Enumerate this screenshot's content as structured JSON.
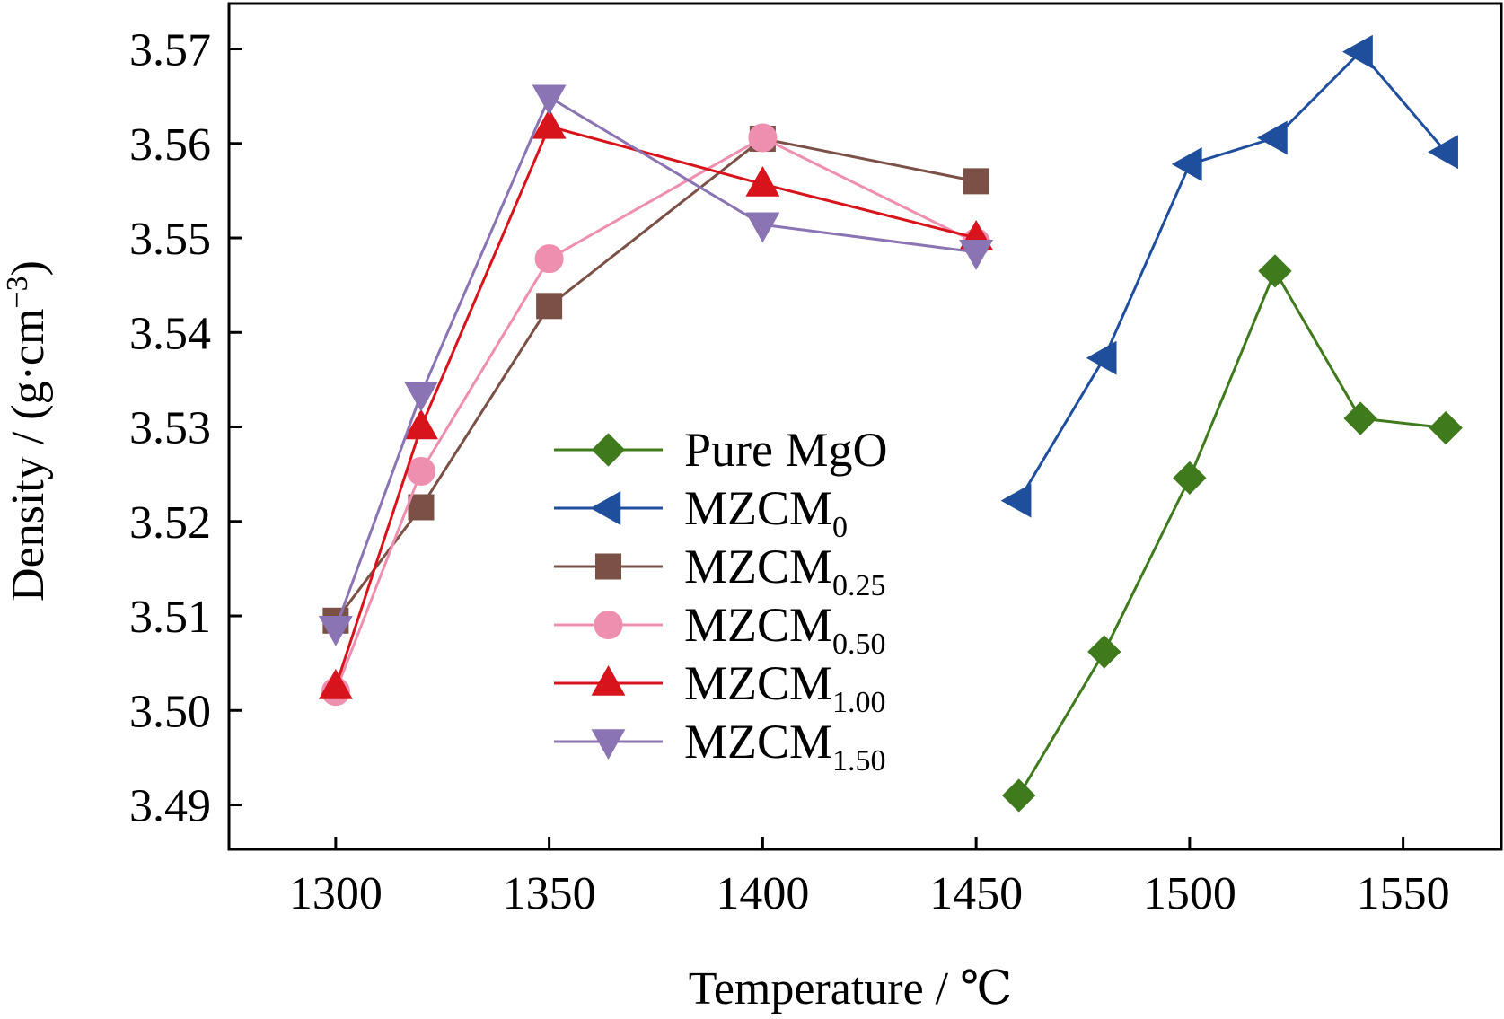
{
  "chart_data": {
    "type": "line",
    "xlabel": "Temperature / ℃",
    "ylabel": "Density / (g·cm",
    "ylabel_sup": "−3",
    "ylabel_end": ")",
    "xlim": [
      1275,
      1573
    ],
    "ylim": [
      3.4853,
      3.5748
    ],
    "xticks": [
      1300,
      1350,
      1400,
      1450,
      1500,
      1550
    ],
    "yticks": [
      3.49,
      3.5,
      3.51,
      3.52,
      3.53,
      3.54,
      3.55,
      3.56,
      3.57
    ],
    "ytick_labels": [
      "3.49",
      "3.50",
      "3.51",
      "3.52",
      "3.53",
      "3.54",
      "3.55",
      "3.56",
      "3.57"
    ],
    "grid": false,
    "legend_placement": "center",
    "series": [
      {
        "name": "Pure MgO",
        "base": "Pure MgO",
        "sub": "",
        "color": "#3f7a1d",
        "marker": "diamond",
        "x": [
          1460,
          1480,
          1500,
          1520,
          1540,
          1560
        ],
        "y": [
          3.491,
          3.5062,
          3.5246,
          3.5465,
          3.5309,
          3.5299
        ]
      },
      {
        "name": "MZCM0",
        "base": "MZCM",
        "sub": "0",
        "color": "#1f4e9c",
        "marker": "triangle-left",
        "x": [
          1460,
          1480,
          1500,
          1520,
          1540,
          1560
        ],
        "y": [
          3.5222,
          3.5373,
          3.5578,
          3.5606,
          3.5697,
          3.5591
        ]
      },
      {
        "name": "MZCM0.25",
        "base": "MZCM",
        "sub": "0.25",
        "color": "#7b5147",
        "marker": "square",
        "x": [
          1300,
          1320,
          1350,
          1400,
          1450
        ],
        "y": [
          3.5095,
          3.5215,
          3.5428,
          3.5605,
          3.556
        ]
      },
      {
        "name": "MZCM0.50",
        "base": "MZCM",
        "sub": "0.50",
        "color": "#ef8fb0",
        "marker": "circle",
        "x": [
          1300,
          1320,
          1350,
          1400,
          1450
        ],
        "y": [
          3.502,
          3.5253,
          3.5478,
          3.5606,
          3.5495
        ]
      },
      {
        "name": "MZCM1.00",
        "base": "MZCM",
        "sub": "1.00",
        "color": "#d7141c",
        "marker": "triangle-up",
        "x": [
          1300,
          1320,
          1350,
          1400,
          1450
        ],
        "y": [
          3.5025,
          3.53,
          3.5618,
          3.5557,
          3.55
        ]
      },
      {
        "name": "MZCM1.50",
        "base": "MZCM",
        "sub": "1.50",
        "color": "#8b74b3",
        "marker": "triangle-down",
        "x": [
          1300,
          1320,
          1350,
          1400,
          1450
        ],
        "y": [
          3.5087,
          3.5335,
          3.5649,
          3.5514,
          3.5485
        ]
      }
    ]
  }
}
